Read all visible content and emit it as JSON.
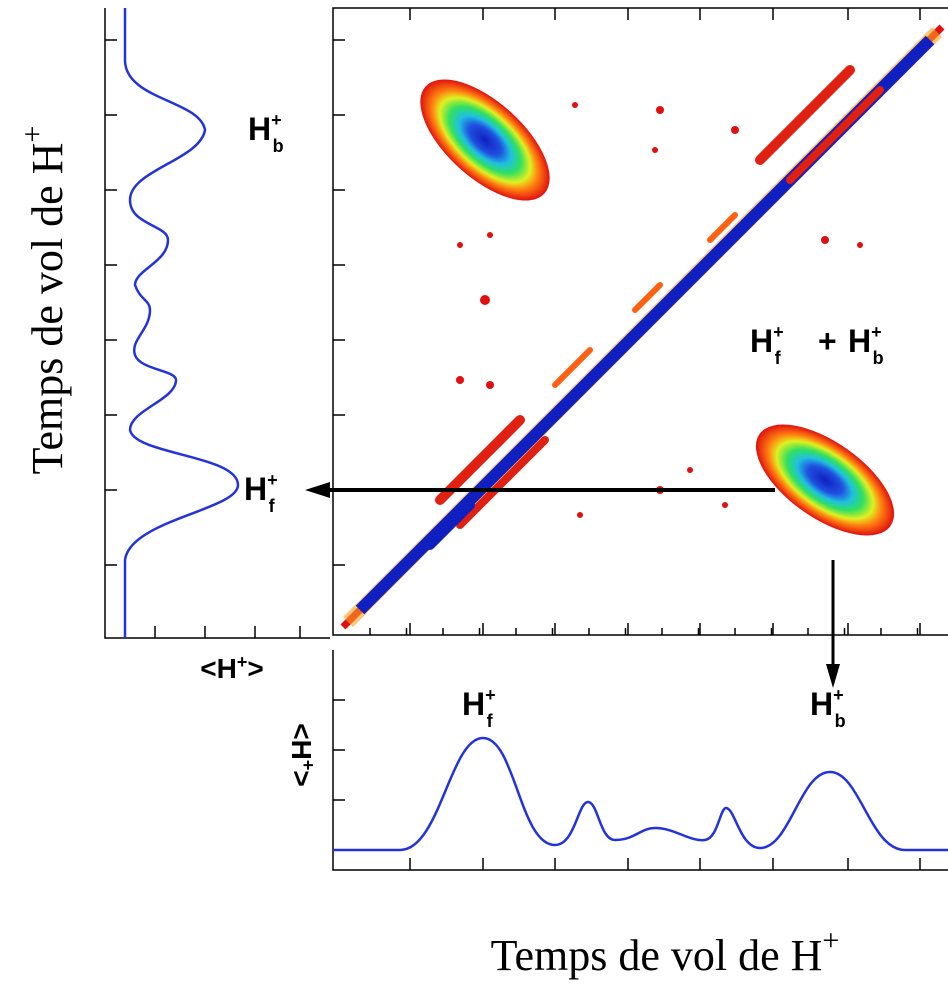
{
  "y_axis_label": {
    "text": "Temps de vol de H",
    "sup": "+"
  },
  "x_axis_label": {
    "text": "Temps de vol de H",
    "sup": "+"
  },
  "left_panel_label": {
    "open": "<H",
    "sup": "+",
    "close": ">"
  },
  "bottom_panel_label": {
    "open": "<H",
    "sup": "+",
    "close": ">"
  },
  "map_labels": {
    "top_left": {
      "base": "H",
      "sup": "+",
      "sub": "b"
    },
    "arrow_left": {
      "base": "H",
      "sup": "+",
      "sub": "f"
    },
    "combined": {
      "first": {
        "base": "H",
        "sup": "+",
        "sub": "f"
      },
      "joiner": "+",
      "second": {
        "base": "H",
        "sup": "+",
        "sub": "b"
      }
    }
  },
  "bottom_labels": {
    "left_peak": {
      "base": "H",
      "sup": "+",
      "sub": "f"
    },
    "right_peak": {
      "base": "H",
      "sup": "+",
      "sub": "b"
    }
  }
}
